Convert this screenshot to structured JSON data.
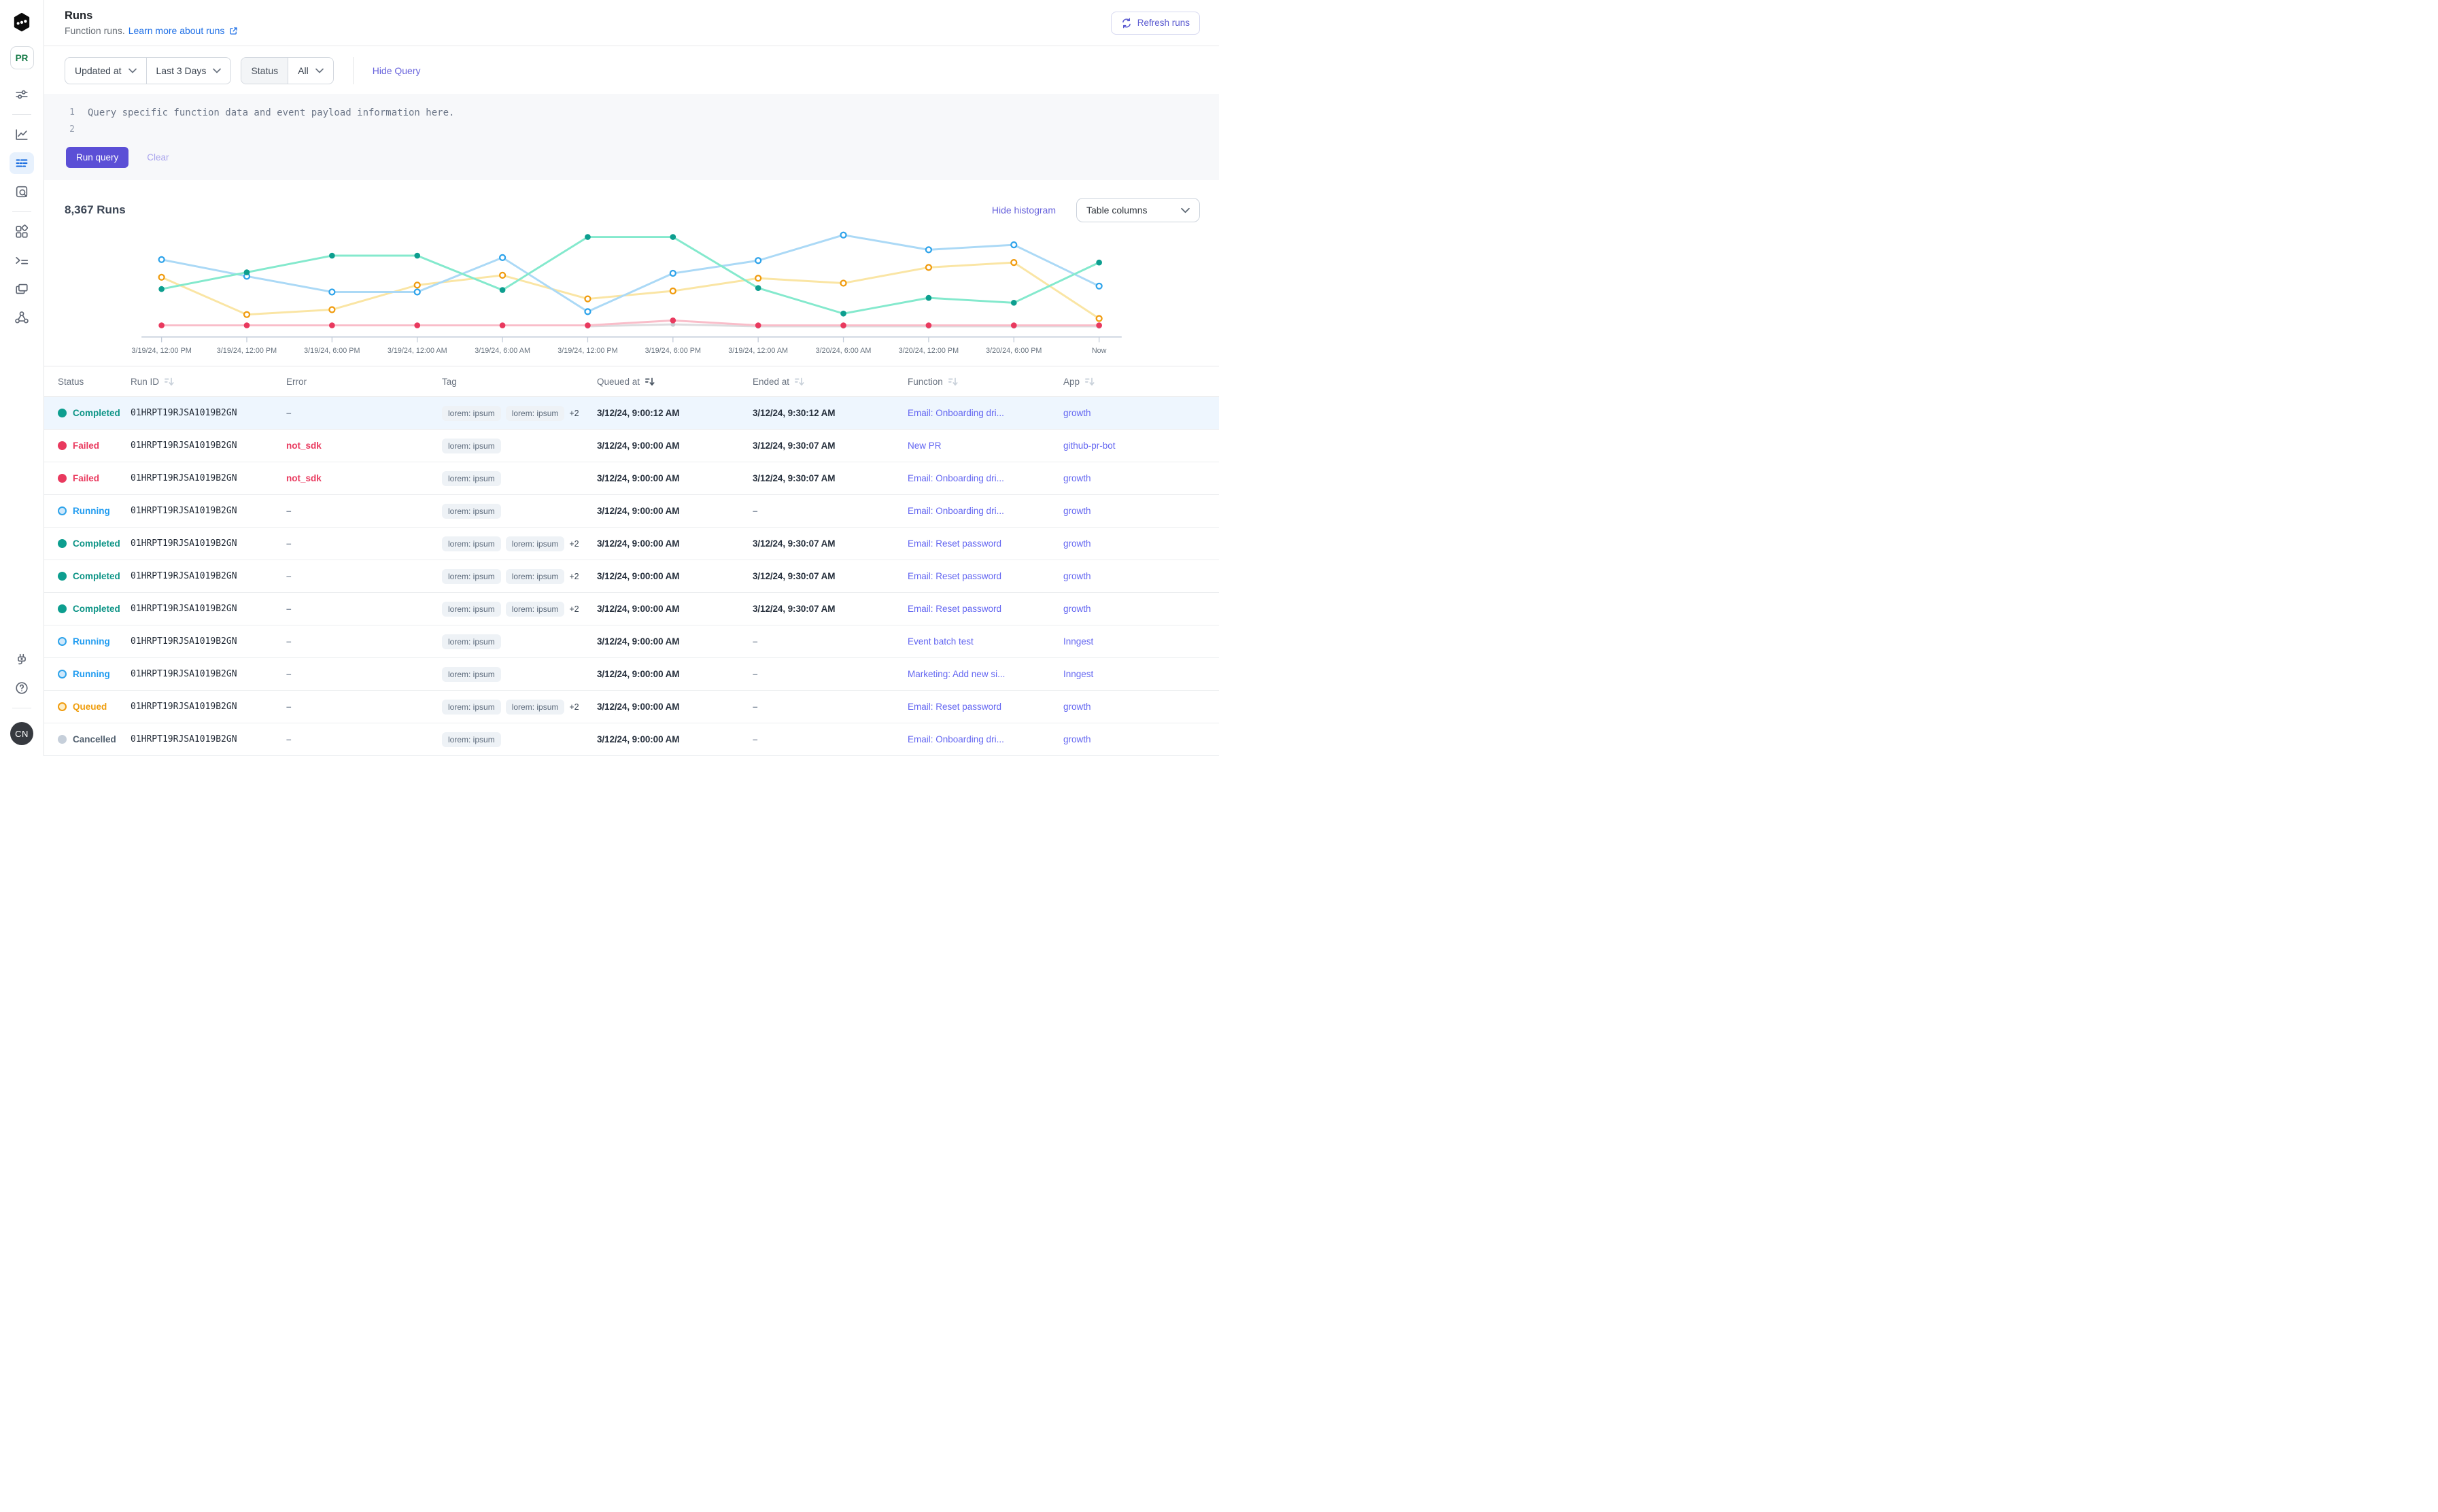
{
  "colors": {
    "accent_purple": "#5b4fd6",
    "link_purple": "#6366f1",
    "link_blue": "#1e6fe6",
    "completed": "#0d9e8f",
    "failed": "#e9395e",
    "running": "#2ea3ea",
    "queued": "#f09b0e",
    "cancelled": "#c6cfda",
    "row_highlight": "#eef6fe"
  },
  "sidebar": {
    "workspace_badge": "PR",
    "user_badge": "CN",
    "icons_top": [
      "sliders-icon"
    ],
    "icons_nav": [
      "metrics-icon",
      "runs-icon",
      "search-icon",
      "apps-icon",
      "functions-icon",
      "windows-icon",
      "webhook-icon"
    ],
    "active_nav": "runs-icon",
    "icons_bottom": [
      "plug-icon",
      "help-icon"
    ]
  },
  "header": {
    "title": "Runs",
    "subtitle": "Function runs.",
    "learn_link": "Learn more about runs",
    "refresh_label": "Refresh runs"
  },
  "filters": {
    "field": "Updated at",
    "range": "Last 3 Days",
    "status_label": "Status",
    "status_value": "All",
    "hide_query": "Hide Query"
  },
  "query": {
    "line_numbers": [
      "1",
      "2"
    ],
    "line1": "Query specific function data and event payload information here.",
    "line2": "",
    "run_label": "Run query",
    "clear_label": "Clear"
  },
  "runs_section": {
    "count_title": "8,367 Runs",
    "hide_histogram": "Hide histogram",
    "table_columns_label": "Table columns"
  },
  "chart_data": {
    "type": "line",
    "title": "",
    "xlabel": "",
    "ylabel": "",
    "grid": "none",
    "legend": "none",
    "ylim": [
      0,
      100
    ],
    "x_labels": [
      "3/19/24, 12:00 PM",
      "3/19/24, 12:00 PM",
      "3/19/24, 6:00 PM",
      "3/19/24, 12:00 AM",
      "3/19/24, 6:00 AM",
      "3/19/24, 12:00 PM",
      "3/19/24, 6:00 PM",
      "3/19/24, 12:00 AM",
      "3/20/24, 6:00 AM",
      "3/20/24, 12:00 PM",
      "3/20/24, 6:00 PM",
      "Now"
    ],
    "series": [
      {
        "name": "Queued",
        "line_color": "#fae5a4",
        "marker_color": "#f09b0e",
        "marker_style": "hollow",
        "values": [
          53,
          15,
          20,
          45,
          55,
          31,
          39,
          52,
          47,
          63,
          68,
          11
        ]
      },
      {
        "name": "Cancelled",
        "line_color": "#dcdcdf",
        "marker_color": "#c7cbd1",
        "marker_style": "filled_small",
        "values": [
          null,
          null,
          null,
          null,
          null,
          3,
          5,
          3,
          3,
          3,
          3,
          3
        ]
      },
      {
        "name": "Failed",
        "line_color": "#f9bdc9",
        "marker_color": "#e9395e",
        "marker_style": "filled",
        "values": [
          4,
          4,
          4,
          4,
          4,
          4,
          9,
          4,
          4,
          4,
          4,
          4
        ]
      },
      {
        "name": "Running",
        "line_color": "#abd9f6",
        "marker_color": "#2ea3ea",
        "marker_style": "hollow",
        "values": [
          71,
          54,
          38,
          38,
          73,
          18,
          57,
          70,
          96,
          81,
          86,
          44
        ]
      },
      {
        "name": "Completed",
        "line_color": "#84e9cd",
        "marker_color": "#0d9e8f",
        "marker_style": "filled",
        "values": [
          41,
          58,
          75,
          75,
          40,
          94,
          94,
          42,
          16,
          32,
          27,
          68
        ]
      }
    ]
  },
  "table": {
    "columns": [
      {
        "label": "Status",
        "sort": false,
        "active": false
      },
      {
        "label": "Run ID",
        "sort": true,
        "active": false
      },
      {
        "label": "Error",
        "sort": false,
        "active": false
      },
      {
        "label": "Tag",
        "sort": false,
        "active": false
      },
      {
        "label": "Queued at",
        "sort": true,
        "active": true
      },
      {
        "label": "Ended at",
        "sort": true,
        "active": false
      },
      {
        "label": "Function",
        "sort": true,
        "active": false
      },
      {
        "label": "App",
        "sort": true,
        "active": false
      }
    ],
    "rows": [
      {
        "status_key": "completed",
        "status": "Completed",
        "run_id": "01HRPT19RJSA1019B2GN",
        "error": "–",
        "tags": [
          "lorem: ipsum",
          "lorem: ipsum"
        ],
        "tags_more": "+2",
        "queued_at": "3/12/24, 9:00:12 AM",
        "ended_at": "3/12/24, 9:30:12 AM",
        "function": "Email: Onboarding dri...",
        "app": "growth",
        "highlighted": true
      },
      {
        "status_key": "failed",
        "status": "Failed",
        "run_id": "01HRPT19RJSA1019B2GN",
        "error": "not_sdk",
        "tags": [
          "lorem: ipsum"
        ],
        "tags_more": "",
        "queued_at": "3/12/24, 9:00:00 AM",
        "ended_at": "3/12/24, 9:30:07 AM",
        "function": "New PR",
        "app": "github-pr-bot",
        "highlighted": false
      },
      {
        "status_key": "failed",
        "status": "Failed",
        "run_id": "01HRPT19RJSA1019B2GN",
        "error": "not_sdk",
        "tags": [
          "lorem: ipsum"
        ],
        "tags_more": "",
        "queued_at": "3/12/24, 9:00:00 AM",
        "ended_at": "3/12/24, 9:30:07 AM",
        "function": "Email: Onboarding dri...",
        "app": "growth",
        "highlighted": false
      },
      {
        "status_key": "running",
        "status": "Running",
        "run_id": "01HRPT19RJSA1019B2GN",
        "error": "–",
        "tags": [
          "lorem: ipsum"
        ],
        "tags_more": "",
        "queued_at": "3/12/24, 9:00:00 AM",
        "ended_at": "–",
        "function": "Email: Onboarding dri...",
        "app": "growth",
        "highlighted": false
      },
      {
        "status_key": "completed",
        "status": "Completed",
        "run_id": "01HRPT19RJSA1019B2GN",
        "error": "–",
        "tags": [
          "lorem: ipsum",
          "lorem: ipsum"
        ],
        "tags_more": "+2",
        "queued_at": "3/12/24, 9:00:00 AM",
        "ended_at": "3/12/24, 9:30:07 AM",
        "function": "Email: Reset password",
        "app": "growth",
        "highlighted": false
      },
      {
        "status_key": "completed",
        "status": "Completed",
        "run_id": "01HRPT19RJSA1019B2GN",
        "error": "–",
        "tags": [
          "lorem: ipsum",
          "lorem: ipsum"
        ],
        "tags_more": "+2",
        "queued_at": "3/12/24, 9:00:00 AM",
        "ended_at": "3/12/24, 9:30:07 AM",
        "function": "Email: Reset password",
        "app": "growth",
        "highlighted": false
      },
      {
        "status_key": "completed",
        "status": "Completed",
        "run_id": "01HRPT19RJSA1019B2GN",
        "error": "–",
        "tags": [
          "lorem: ipsum",
          "lorem: ipsum"
        ],
        "tags_more": "+2",
        "queued_at": "3/12/24, 9:00:00 AM",
        "ended_at": "3/12/24, 9:30:07 AM",
        "function": "Email: Reset password",
        "app": "growth",
        "highlighted": false
      },
      {
        "status_key": "running",
        "status": "Running",
        "run_id": "01HRPT19RJSA1019B2GN",
        "error": "–",
        "tags": [
          "lorem: ipsum"
        ],
        "tags_more": "",
        "queued_at": "3/12/24, 9:00:00 AM",
        "ended_at": "–",
        "function": "Event batch test",
        "app": "Inngest",
        "highlighted": false
      },
      {
        "status_key": "running",
        "status": "Running",
        "run_id": "01HRPT19RJSA1019B2GN",
        "error": "–",
        "tags": [
          "lorem: ipsum"
        ],
        "tags_more": "",
        "queued_at": "3/12/24, 9:00:00 AM",
        "ended_at": "–",
        "function": "Marketing: Add new si...",
        "app": "Inngest",
        "highlighted": false
      },
      {
        "status_key": "queued",
        "status": "Queued",
        "run_id": "01HRPT19RJSA1019B2GN",
        "error": "–",
        "tags": [
          "lorem: ipsum",
          "lorem: ipsum"
        ],
        "tags_more": "+2",
        "queued_at": "3/12/24, 9:00:00 AM",
        "ended_at": "–",
        "function": "Email: Reset password",
        "app": "growth",
        "highlighted": false
      },
      {
        "status_key": "cancelled",
        "status": "Cancelled",
        "run_id": "01HRPT19RJSA1019B2GN",
        "error": "–",
        "tags": [
          "lorem: ipsum"
        ],
        "tags_more": "",
        "queued_at": "3/12/24, 9:00:00 AM",
        "ended_at": "–",
        "function": "Email: Onboarding dri...",
        "app": "growth",
        "highlighted": false
      }
    ]
  }
}
